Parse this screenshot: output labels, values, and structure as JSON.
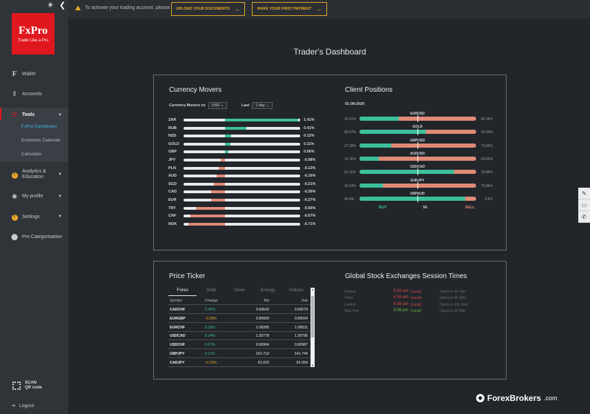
{
  "sidebar": {
    "logo_brand": "FxPro",
    "logo_tagline": "Trade Like a Pro",
    "items": [
      {
        "label": "Wallet",
        "icon": "F"
      },
      {
        "label": "Accounts",
        "icon": "accounts-icon"
      },
      {
        "label": "Tools",
        "icon": "tools-icon"
      },
      {
        "label": "Analytics & Education",
        "icon": "!"
      },
      {
        "label": "My profile",
        "icon": "user-icon"
      },
      {
        "label": "Settings",
        "icon": "!"
      },
      {
        "label": "Pro Categorisation",
        "icon": "pro-icon"
      }
    ],
    "tools_sub": [
      "FxPro Dashboard",
      "Economic Calendar",
      "Calculator"
    ],
    "qr_label_1": "SCAN",
    "qr_label_2": "QR code",
    "logout": "Logout"
  },
  "topbar": {
    "notice": "To activate your trading account, please",
    "btn_upload": "UPLOAD YOUR DOCUMENTS",
    "btn_payment": "MAKE YOUR FIRST PAYMENT"
  },
  "page_title": "Trader's Dashboard",
  "currency_movers": {
    "title": "Currency Movers",
    "ctl_label": "Currency Movers vs",
    "ctl_value": "USD",
    "last_label": "Last",
    "last_value": "1 day",
    "rows": [
      {
        "code": "ZAR",
        "pct": 1.41,
        "text": "1.41%"
      },
      {
        "code": "RUB",
        "pct": 0.41,
        "text": "0.41%"
      },
      {
        "code": "NZD",
        "pct": 0.12,
        "text": "0.12%"
      },
      {
        "code": "GOLD",
        "pct": 0.11,
        "text": "0.11%"
      },
      {
        "code": "GBP",
        "pct": 0.06,
        "text": "0.06%"
      },
      {
        "code": "JPY",
        "pct": -0.08,
        "text": "-0.08%"
      },
      {
        "code": "PLN",
        "pct": -0.12,
        "text": "-0.12%"
      },
      {
        "code": "AUD",
        "pct": -0.16,
        "text": "-0.16%"
      },
      {
        "code": "SGD",
        "pct": -0.21,
        "text": "-0.21%"
      },
      {
        "code": "CAD",
        "pct": -0.26,
        "text": "-0.26%"
      },
      {
        "code": "EUR",
        "pct": -0.27,
        "text": "-0.27%"
      },
      {
        "code": "TRY",
        "pct": -0.56,
        "text": "-0.56%"
      },
      {
        "code": "CHF",
        "pct": -0.67,
        "text": "-0.67%"
      },
      {
        "code": "NOK",
        "pct": -0.71,
        "text": "-0.71%"
      }
    ],
    "colors": {
      "positive": "#3cbf9b",
      "negative": "#e08a76"
    }
  },
  "client_positions": {
    "title": "Client Positions",
    "date": "01-09-2020",
    "rows": [
      {
        "pair": "EURUSD",
        "buy": 33.91,
        "buy_text": "33.91%",
        "sell_text": "66.09%"
      },
      {
        "pair": "GOLD",
        "buy": 56.67,
        "buy_text": "56.67%",
        "sell_text": "43.33%"
      },
      {
        "pair": "GBPUSD",
        "buy": 27.18,
        "buy_text": "27.18%",
        "sell_text": "72.82%"
      },
      {
        "pair": "AUDUSD",
        "buy": 16.35,
        "buy_text": "16.35%",
        "sell_text": "83.65%"
      },
      {
        "pair": "USDCAD",
        "buy": 81.11,
        "buy_text": "81.11%",
        "sell_text": "18.89%"
      },
      {
        "pair": "EURJPY",
        "buy": 20.14,
        "buy_text": "20.14%",
        "sell_text": "79.86%"
      },
      {
        "pair": "GBPAUD",
        "buy": 90.4,
        "buy_text": "90.4%",
        "sell_text": "9.6%"
      }
    ],
    "buy_label": "BUY",
    "mid_label": "50",
    "sell_label": "SELL",
    "colors": {
      "buy": "#3cbf9b",
      "sell": "#e08a76"
    }
  },
  "price_ticker": {
    "title": "Price Ticker",
    "tabs": [
      "Forex",
      "Gold",
      "Silver",
      "Energy",
      "Indices"
    ],
    "headers": {
      "symbol": "Symbol",
      "change": "Change",
      "bid": "Bid",
      "ask": "Ask"
    },
    "rows": [
      {
        "symbol": "CADCHF",
        "change": "0.46%",
        "dir": "up",
        "bid": "0.69542",
        "ask": "0.69579"
      },
      {
        "symbol": "EURGBP",
        "change": "-0.28%",
        "dir": "down",
        "bid": "0.89009",
        "ask": "0.89024"
      },
      {
        "symbol": "EURCHF",
        "change": "0.39%",
        "dir": "up",
        "bid": "1.08285",
        "ask": "1.08311"
      },
      {
        "symbol": "USDCAD",
        "change": "0.24%",
        "dir": "up",
        "bid": "1.30778",
        "ask": "1.30795"
      },
      {
        "symbol": "USDCHF",
        "change": "0.67%",
        "dir": "up",
        "bid": "0.90964",
        "ask": "0.90987"
      },
      {
        "symbol": "GBPJPY",
        "change": "0.11%",
        "dir": "up",
        "bid": "141.713",
        "ask": "141.744"
      },
      {
        "symbol": "CADJPY",
        "change": "-0.14%",
        "dir": "down",
        "bid": "81.023",
        "ask": "81.054"
      }
    ],
    "colors": {
      "up": "#3cbf9b",
      "down": "#e8a826"
    }
  },
  "stock_exchanges": {
    "title": "Global Stock Exchanges Session Times",
    "rows": [
      {
        "city": "Sydney",
        "time": "5:36 am",
        "local": "(Local)",
        "opens": "Opens in 4h 14m",
        "color": "#e04848"
      },
      {
        "city": "Tokyo",
        "time": "4:36 am",
        "local": "(Local)",
        "opens": "Opens in 4h 24m",
        "color": "#e04848"
      },
      {
        "city": "London",
        "time": "6:36 pm",
        "local": "(Local)",
        "opens": "Opens in 11h 24m",
        "color": "#e04848"
      },
      {
        "city": "New York",
        "time": "3:36 pm",
        "local": "(Local)",
        "opens": "Opens in 4h 24m",
        "color": "#6ec24a"
      }
    ]
  },
  "watermark": {
    "brand": "ForexBrokers",
    "suffix": ".com"
  }
}
